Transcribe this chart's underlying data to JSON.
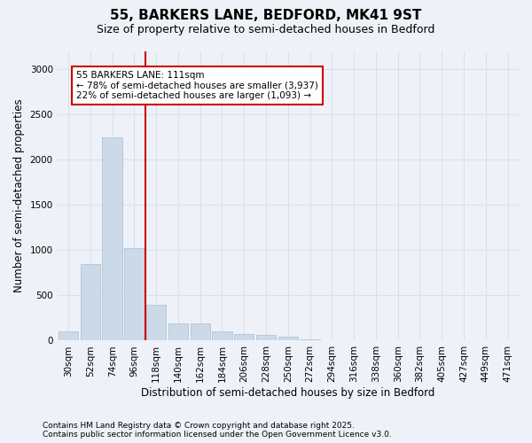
{
  "title": "55, BARKERS LANE, BEDFORD, MK41 9ST",
  "subtitle": "Size of property relative to semi-detached houses in Bedford",
  "xlabel": "Distribution of semi-detached houses by size in Bedford",
  "ylabel": "Number of semi-detached properties",
  "categories": [
    "30sqm",
    "52sqm",
    "74sqm",
    "96sqm",
    "118sqm",
    "140sqm",
    "162sqm",
    "184sqm",
    "206sqm",
    "228sqm",
    "250sqm",
    "272sqm",
    "294sqm",
    "316sqm",
    "338sqm",
    "360sqm",
    "382sqm",
    "405sqm",
    "427sqm",
    "449sqm",
    "471sqm"
  ],
  "values": [
    100,
    850,
    2250,
    1025,
    400,
    190,
    190,
    100,
    70,
    60,
    40,
    15,
    5,
    2,
    1,
    1,
    0,
    0,
    0,
    0,
    0
  ],
  "bar_color": "#ccd9e8",
  "bar_edge_color": "#b0c4d8",
  "grid_color": "#d8e0ec",
  "background_color": "#eef2f8",
  "vline_x": 3.5,
  "vline_color": "#cc0000",
  "annotation_title": "55 BARKERS LANE: 111sqm",
  "annotation_line1": "← 78% of semi-detached houses are smaller (3,937)",
  "annotation_line2": "22% of semi-detached houses are larger (1,093) →",
  "annotation_box_color": "#ffffff",
  "annotation_box_edge": "#cc0000",
  "footnote1": "Contains HM Land Registry data © Crown copyright and database right 2025.",
  "footnote2": "Contains public sector information licensed under the Open Government Licence v3.0.",
  "ylim": [
    0,
    3200
  ],
  "yticks": [
    0,
    500,
    1000,
    1500,
    2000,
    2500,
    3000
  ],
  "title_fontsize": 11,
  "subtitle_fontsize": 9,
  "axis_label_fontsize": 8.5,
  "tick_fontsize": 7.5,
  "annotation_fontsize": 7.5,
  "footnote_fontsize": 6.5
}
